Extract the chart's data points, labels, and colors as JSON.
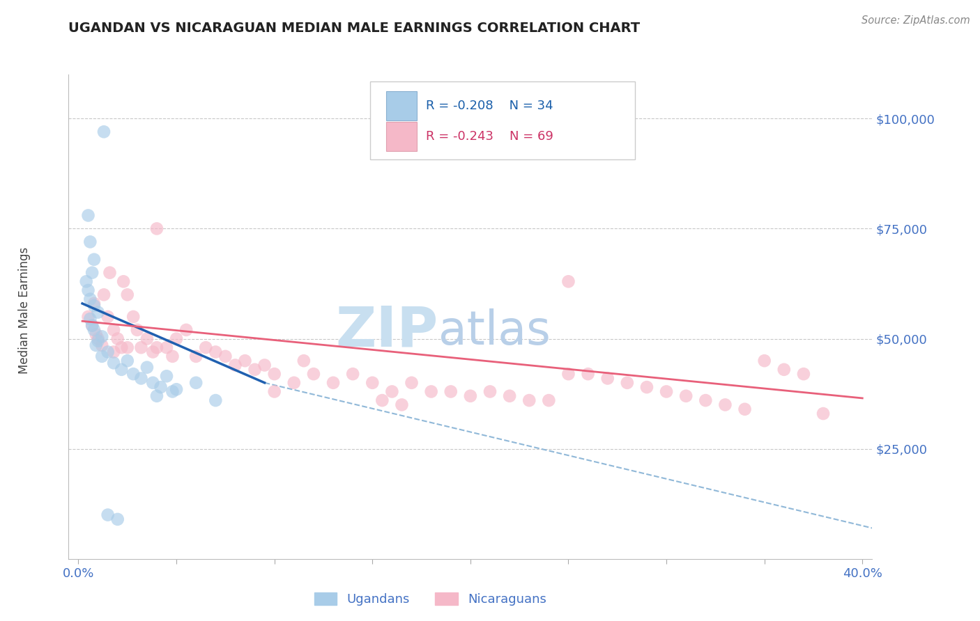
{
  "title": "UGANDAN VS NICARAGUAN MEDIAN MALE EARNINGS CORRELATION CHART",
  "source": "Source: ZipAtlas.com",
  "ylabel_label": "Median Male Earnings",
  "xlim": [
    -0.005,
    0.405
  ],
  "ylim": [
    0,
    110000
  ],
  "ytick_positions": [
    25000,
    50000,
    75000,
    100000
  ],
  "ytick_labels": [
    "$25,000",
    "$50,000",
    "$75,000",
    "$100,000"
  ],
  "ugandan_color": "#a8cce8",
  "nicaraguan_color": "#f5b8c8",
  "ugandan_line_color": "#2060b0",
  "nicaraguan_line_color": "#e8607a",
  "dashed_line_color": "#90b8d8",
  "legend_R1": "R = -0.208",
  "legend_N1": "N = 34",
  "legend_R2": "R = -0.243",
  "legend_N2": "N = 69",
  "legend_color_R1": "#1a5faa",
  "legend_color_N1": "#1a5faa",
  "legend_color_R2": "#cc3366",
  "legend_color_N2": "#cc3366",
  "legend_sq1": "#a8cce8",
  "legend_sq2": "#f5b8c8",
  "tick_color": "#4472c4",
  "watermark_zip": "ZIP",
  "watermark_atlas": "atlas",
  "watermark_color_zip": "#c8dff0",
  "watermark_color_atlas": "#b8cfe8",
  "bg_color": "#ffffff",
  "grid_color": "#c8c8c8",
  "title_color": "#222222",
  "axis_label_color": "#444444",
  "ugandan_points_x": [
    0.013,
    0.005,
    0.006,
    0.008,
    0.007,
    0.004,
    0.005,
    0.006,
    0.008,
    0.01,
    0.006,
    0.007,
    0.008,
    0.012,
    0.01,
    0.009,
    0.015,
    0.012,
    0.018,
    0.022,
    0.028,
    0.032,
    0.038,
    0.042,
    0.048,
    0.025,
    0.035,
    0.045,
    0.06,
    0.05,
    0.04,
    0.07,
    0.015,
    0.02
  ],
  "ugandan_points_y": [
    97000,
    78000,
    72000,
    68000,
    65000,
    63000,
    61000,
    59000,
    57500,
    56000,
    54500,
    53000,
    52000,
    50500,
    49500,
    48500,
    47000,
    46000,
    44500,
    43000,
    42000,
    41000,
    40000,
    39000,
    38000,
    45000,
    43500,
    41500,
    40000,
    38500,
    37000,
    36000,
    10000,
    9000
  ],
  "nicaraguan_points_x": [
    0.005,
    0.007,
    0.008,
    0.009,
    0.01,
    0.012,
    0.013,
    0.015,
    0.016,
    0.018,
    0.02,
    0.022,
    0.023,
    0.025,
    0.028,
    0.03,
    0.032,
    0.035,
    0.038,
    0.04,
    0.045,
    0.048,
    0.05,
    0.055,
    0.06,
    0.065,
    0.07,
    0.075,
    0.08,
    0.085,
    0.09,
    0.095,
    0.1,
    0.11,
    0.115,
    0.12,
    0.13,
    0.14,
    0.15,
    0.16,
    0.17,
    0.18,
    0.19,
    0.2,
    0.21,
    0.22,
    0.23,
    0.24,
    0.25,
    0.26,
    0.27,
    0.28,
    0.29,
    0.3,
    0.31,
    0.32,
    0.33,
    0.34,
    0.35,
    0.36,
    0.37,
    0.018,
    0.025,
    0.04,
    0.25,
    0.38,
    0.1,
    0.155,
    0.165
  ],
  "nicaraguan_points_y": [
    55000,
    53000,
    58000,
    51000,
    50000,
    48500,
    60000,
    55000,
    65000,
    52000,
    50000,
    48000,
    63000,
    60000,
    55000,
    52000,
    48000,
    50000,
    47000,
    48000,
    48000,
    46000,
    50000,
    52000,
    46000,
    48000,
    47000,
    46000,
    44000,
    45000,
    43000,
    44000,
    42000,
    40000,
    45000,
    42000,
    40000,
    42000,
    40000,
    38000,
    40000,
    38000,
    38000,
    37000,
    38000,
    37000,
    36000,
    36000,
    63000,
    42000,
    41000,
    40000,
    39000,
    38000,
    37000,
    36000,
    35000,
    34000,
    45000,
    43000,
    42000,
    47000,
    48000,
    75000,
    42000,
    33000,
    38000,
    36000,
    35000
  ],
  "ug_line_x0": 0.002,
  "ug_line_y0": 58000,
  "ug_line_x1": 0.095,
  "ug_line_y1": 40000,
  "nic_line_x0": 0.002,
  "nic_line_y0": 54000,
  "nic_line_x1": 0.4,
  "nic_line_y1": 36500,
  "dash_line_x0": 0.095,
  "dash_line_y0": 40000,
  "dash_line_x1": 0.405,
  "dash_line_y1": 7000
}
